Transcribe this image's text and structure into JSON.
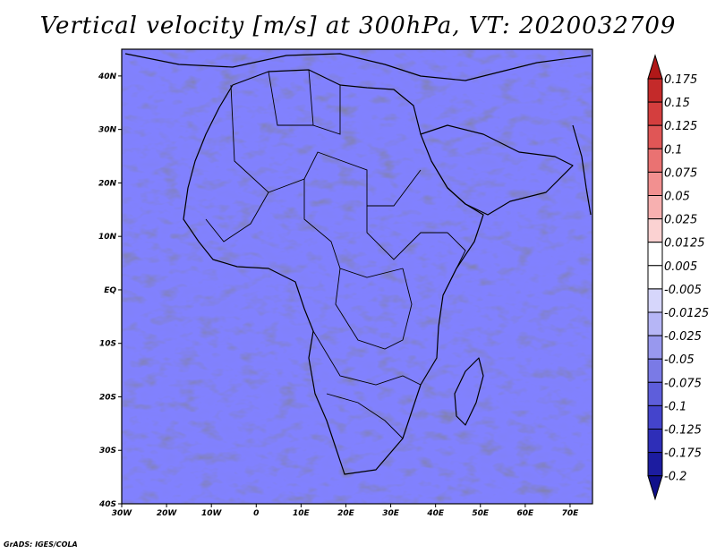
{
  "title": "Vertical velocity [m/s] at 300hPa, VT: 2020032709",
  "credit": "GrADS: IGES/COLA",
  "map": {
    "lon_range": [
      -30,
      75
    ],
    "lat_range": [
      -40,
      45
    ],
    "lon_ticks": [
      {
        "value": -30,
        "label": "30W"
      },
      {
        "value": -20,
        "label": "20W"
      },
      {
        "value": -10,
        "label": "10W"
      },
      {
        "value": 0,
        "label": "0"
      },
      {
        "value": 10,
        "label": "10E"
      },
      {
        "value": 20,
        "label": "20E"
      },
      {
        "value": 30,
        "label": "30E"
      },
      {
        "value": 40,
        "label": "40E"
      },
      {
        "value": 50,
        "label": "50E"
      },
      {
        "value": 60,
        "label": "60E"
      },
      {
        "value": 70,
        "label": "70E"
      }
    ],
    "lat_ticks": [
      {
        "value": 40,
        "label": "40N"
      },
      {
        "value": 30,
        "label": "30N"
      },
      {
        "value": 20,
        "label": "20N"
      },
      {
        "value": 10,
        "label": "10N"
      },
      {
        "value": 0,
        "label": "EQ"
      },
      {
        "value": -10,
        "label": "10S"
      },
      {
        "value": -20,
        "label": "20S"
      },
      {
        "value": -30,
        "label": "30S"
      },
      {
        "value": -40,
        "label": "40S"
      }
    ]
  },
  "colorbar": {
    "levels": [
      "0.175",
      "0.15",
      "0.125",
      "0.1",
      "0.075",
      "0.05",
      "0.025",
      "0.0125",
      "0.005",
      "-0.005",
      "-0.0125",
      "-0.025",
      "-0.05",
      "-0.075",
      "-0.1",
      "-0.125",
      "-0.175",
      "-0.2"
    ],
    "colors": [
      "#b01818",
      "#c42a2a",
      "#d43e3e",
      "#e05656",
      "#ea7272",
      "#f29090",
      "#f7b0b0",
      "#fbd2d2",
      "#ffffff",
      "#ffffff",
      "#d6d6fb",
      "#b6b6f6",
      "#9898ee",
      "#7a7ae6",
      "#5e5edb",
      "#4444cc",
      "#2e2eb8",
      "#1c1ca0",
      "#10108a"
    ]
  }
}
